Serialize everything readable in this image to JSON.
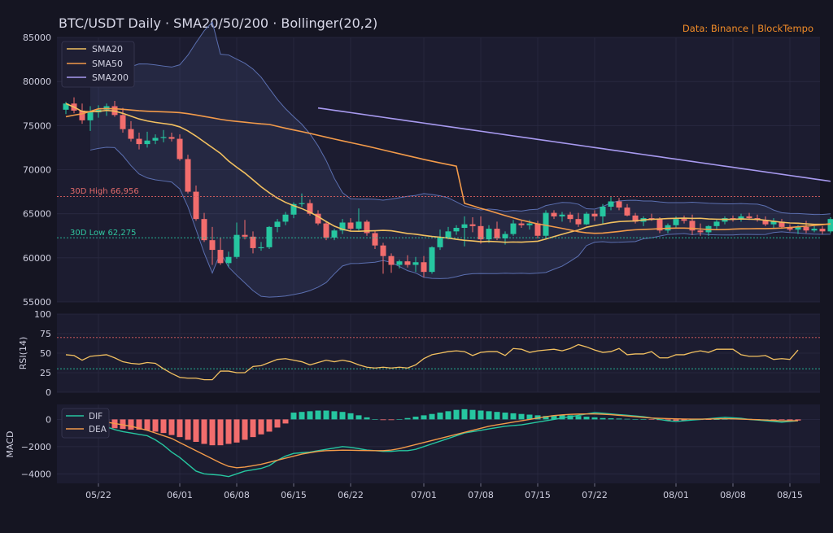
{
  "chart_data": {
    "type": "candlestick",
    "title": "BTC/USDT Daily  ·  SMA20/50/200  ·  Bollinger(20,2)",
    "source": "Data: Binance  |  BlockTempo",
    "colors": {
      "background": "#151522",
      "panel": "#1c1c30",
      "up": "#26c6a0",
      "down": "#f26d6d",
      "sma20": "#f2c060",
      "sma50": "#f29a4a",
      "sma200": "#a89af0",
      "bollinger": "#5b6fb0",
      "dif": "#26c6a0",
      "dea": "#f29a4a",
      "high_line": "#e06060",
      "low_line": "#26c6a0",
      "text": "#cfcfe0",
      "accent": "#f28c28"
    },
    "price_axis": {
      "ylim": [
        55000,
        85000
      ],
      "ticks": [
        55000,
        60000,
        65000,
        70000,
        75000,
        80000,
        85000
      ]
    },
    "x_ticks": [
      "05/22",
      "06/01",
      "06/08",
      "06/15",
      "06/22",
      "07/01",
      "07/08",
      "07/15",
      "07/22",
      "08/01",
      "08/08",
      "08/15"
    ],
    "x_tick_index": [
      4,
      14,
      21,
      28,
      35,
      44,
      51,
      58,
      65,
      75,
      82,
      89
    ],
    "legend": [
      "SMA20",
      "SMA50",
      "SMA200"
    ],
    "annotations": {
      "high": {
        "label": "30D High 66,956",
        "value": 66956
      },
      "low": {
        "label": "30D Low 62,275",
        "value": 62275
      }
    },
    "candles_ohlc": [
      [
        76800,
        77700,
        76300,
        77500
      ],
      [
        77500,
        78200,
        76400,
        76700
      ],
      [
        76700,
        77500,
        75200,
        75600
      ],
      [
        75600,
        77200,
        74400,
        76500
      ],
      [
        76500,
        77300,
        75900,
        76800
      ],
      [
        76800,
        77500,
        76100,
        77200
      ],
      [
        77200,
        77800,
        76000,
        76200
      ],
      [
        76200,
        77000,
        74200,
        74600
      ],
      [
        74600,
        75500,
        73200,
        73500
      ],
      [
        73500,
        74200,
        72300,
        72900
      ],
      [
        72900,
        74300,
        72500,
        73300
      ],
      [
        73300,
        74000,
        72900,
        73600
      ],
      [
        73600,
        74500,
        73100,
        73700
      ],
      [
        73700,
        74200,
        73200,
        73500
      ],
      [
        73500,
        74000,
        71000,
        71200
      ],
      [
        71200,
        71700,
        67300,
        67500
      ],
      [
        67500,
        68200,
        64200,
        64400
      ],
      [
        64400,
        65100,
        61800,
        62000
      ],
      [
        62000,
        63500,
        59200,
        60900
      ],
      [
        60900,
        62300,
        59200,
        59400
      ],
      [
        59400,
        60700,
        59000,
        60100
      ],
      [
        60100,
        64000,
        59900,
        62600
      ],
      [
        62600,
        64300,
        62100,
        62400
      ],
      [
        62400,
        63000,
        60500,
        61100
      ],
      [
        61100,
        61800,
        60800,
        61200
      ],
      [
        61200,
        63600,
        61000,
        63500
      ],
      [
        63500,
        64400,
        62900,
        64100
      ],
      [
        64100,
        65200,
        63700,
        64900
      ],
      [
        64900,
        66300,
        64500,
        66100
      ],
      [
        66100,
        67300,
        65800,
        66200
      ],
      [
        66200,
        66600,
        64800,
        65000
      ],
      [
        65000,
        65400,
        63700,
        63900
      ],
      [
        63900,
        64100,
        62000,
        62300
      ],
      [
        62300,
        63300,
        62000,
        63100
      ],
      [
        63100,
        64400,
        62700,
        64000
      ],
      [
        64000,
        64500,
        63100,
        63300
      ],
      [
        63300,
        65600,
        63100,
        64100
      ],
      [
        64100,
        64300,
        62500,
        62800
      ],
      [
        62800,
        63100,
        61000,
        61400
      ],
      [
        61400,
        61700,
        58200,
        60200
      ],
      [
        60200,
        60500,
        58300,
        59200
      ],
      [
        59200,
        59800,
        58800,
        59600
      ],
      [
        59600,
        60300,
        58900,
        59200
      ],
      [
        59200,
        60100,
        58400,
        59500
      ],
      [
        59500,
        60200,
        57800,
        58400
      ],
      [
        58400,
        61300,
        58200,
        61200
      ],
      [
        61200,
        63200,
        60900,
        62300
      ],
      [
        62300,
        63500,
        62100,
        63000
      ],
      [
        63000,
        63700,
        62600,
        63400
      ],
      [
        63400,
        64700,
        61300,
        63800
      ],
      [
        63800,
        64600,
        62900,
        63600
      ],
      [
        63600,
        64700,
        61600,
        62100
      ],
      [
        62100,
        63700,
        61700,
        63300
      ],
      [
        63300,
        64100,
        62000,
        62200
      ],
      [
        62200,
        63000,
        61500,
        62700
      ],
      [
        62700,
        64300,
        62500,
        63900
      ],
      [
        63900,
        64200,
        63400,
        63700
      ],
      [
        63700,
        64300,
        63200,
        63900
      ],
      [
        63900,
        64200,
        62200,
        62500
      ],
      [
        62500,
        65400,
        62300,
        65100
      ],
      [
        65100,
        65400,
        64400,
        64700
      ],
      [
        64700,
        65200,
        64100,
        64900
      ],
      [
        64900,
        65200,
        64000,
        64400
      ],
      [
        64400,
        65100,
        63500,
        63800
      ],
      [
        63800,
        65200,
        63700,
        65000
      ],
      [
        65000,
        65400,
        64200,
        64700
      ],
      [
        64700,
        66100,
        63800,
        65800
      ],
      [
        65800,
        66900,
        65400,
        66400
      ],
      [
        66400,
        66800,
        65400,
        65700
      ],
      [
        65700,
        66100,
        64700,
        64800
      ],
      [
        64800,
        65100,
        63900,
        64100
      ],
      [
        64100,
        64700,
        63600,
        64500
      ],
      [
        64500,
        65000,
        64200,
        64400
      ],
      [
        64400,
        64600,
        62800,
        63100
      ],
      [
        63100,
        63900,
        62800,
        63700
      ],
      [
        63700,
        64700,
        63400,
        64400
      ],
      [
        64400,
        64800,
        63900,
        64200
      ],
      [
        64200,
        64900,
        62600,
        63100
      ],
      [
        63100,
        63900,
        62500,
        62900
      ],
      [
        62900,
        63700,
        62500,
        63600
      ],
      [
        63600,
        64300,
        63200,
        64100
      ],
      [
        64100,
        64700,
        63800,
        64500
      ],
      [
        64500,
        64800,
        64100,
        64400
      ],
      [
        64400,
        65000,
        64100,
        64700
      ],
      [
        64700,
        65100,
        64300,
        64500
      ],
      [
        64500,
        64900,
        64100,
        64300
      ],
      [
        64300,
        64700,
        63600,
        63800
      ],
      [
        63800,
        64500,
        63400,
        64100
      ],
      [
        64100,
        64400,
        63300,
        63500
      ],
      [
        63500,
        63800,
        63000,
        63200
      ],
      [
        63200,
        63700,
        62700,
        63500
      ],
      [
        63500,
        64200,
        62800,
        63100
      ],
      [
        63100,
        63600,
        62900,
        63300
      ],
      [
        63300,
        63600,
        62700,
        63000
      ],
      [
        63000,
        64600,
        62800,
        64400
      ]
    ],
    "rsi": {
      "label": "RSI(14)",
      "ylim": [
        0,
        100
      ],
      "ticks": [
        0,
        25,
        50,
        75,
        100
      ],
      "levels": [
        70,
        30
      ],
      "values": [
        48,
        47,
        41,
        46,
        47,
        48,
        44,
        39,
        37,
        36,
        38,
        37,
        30,
        24,
        19,
        18,
        18,
        16,
        16,
        27,
        27,
        25,
        25,
        33,
        34,
        38,
        42,
        43,
        41,
        39,
        35,
        38,
        41,
        39,
        41,
        39,
        35,
        32,
        31,
        32,
        31,
        32,
        31,
        35,
        43,
        48,
        50,
        52,
        53,
        52,
        47,
        51,
        52,
        52,
        47,
        56,
        55,
        51,
        53,
        54,
        55,
        53,
        56,
        61,
        58,
        54,
        51,
        52,
        56,
        48,
        49,
        49,
        52,
        44,
        44,
        48,
        48,
        51,
        53,
        51,
        55,
        55,
        55,
        48,
        46,
        46,
        47,
        42,
        43,
        42,
        54
      ]
    },
    "macd": {
      "label": "MACD",
      "legend": [
        "DIF",
        "DEA"
      ],
      "ylim": [
        -4700,
        1100
      ],
      "ticks": [
        -4000,
        -2000,
        0
      ],
      "dif": [
        -200,
        -300,
        -350,
        -300,
        -400,
        -550,
        -750,
        -900,
        -1000,
        -1100,
        -1200,
        -1500,
        -1900,
        -2400,
        -2800,
        -3300,
        -3800,
        -4000,
        -4050,
        -4100,
        -4200,
        -4000,
        -3800,
        -3700,
        -3600,
        -3400,
        -3000,
        -2700,
        -2500,
        -2450,
        -2400,
        -2300,
        -2200,
        -2100,
        -2000,
        -2050,
        -2150,
        -2250,
        -2300,
        -2350,
        -2350,
        -2300,
        -2300,
        -2200,
        -2000,
        -1800,
        -1600,
        -1400,
        -1200,
        -1000,
        -900,
        -800,
        -700,
        -600,
        -500,
        -450,
        -400,
        -300,
        -200,
        -100,
        0,
        100,
        200,
        300,
        400,
        500,
        450,
        400,
        350,
        300,
        250,
        200,
        100,
        0,
        -100,
        -150,
        -100,
        -50,
        0,
        50,
        100,
        150,
        120,
        80,
        0,
        -50,
        -100,
        -150,
        -200,
        -150,
        -100
      ],
      "dea": [
        300,
        200,
        100,
        0,
        -100,
        -200,
        -300,
        -400,
        -500,
        -650,
        -800,
        -1000,
        -1200,
        -1400,
        -1700,
        -2000,
        -2300,
        -2600,
        -2900,
        -3200,
        -3450,
        -3550,
        -3500,
        -3400,
        -3300,
        -3150,
        -3000,
        -2850,
        -2700,
        -2550,
        -2450,
        -2350,
        -2300,
        -2280,
        -2260,
        -2270,
        -2280,
        -2290,
        -2300,
        -2300,
        -2250,
        -2150,
        -2000,
        -1850,
        -1700,
        -1550,
        -1400,
        -1250,
        -1100,
        -950,
        -800,
        -650,
        -500,
        -400,
        -300,
        -200,
        -100,
        0,
        100,
        200,
        280,
        330,
        370,
        390,
        400,
        400,
        380,
        350,
        300,
        250,
        200,
        150,
        100,
        80,
        60,
        40,
        30,
        20,
        20,
        30,
        40,
        50,
        40,
        20,
        0,
        -20,
        -50,
        -80,
        -100,
        -100,
        -90
      ],
      "hist": [
        -300,
        -400,
        -500,
        -600,
        -700,
        -700,
        -650,
        -700,
        -750,
        -750,
        -800,
        -900,
        -1000,
        -1150,
        -1300,
        -1500,
        -1650,
        -1800,
        -1900,
        -1900,
        -1800,
        -1700,
        -1500,
        -1300,
        -1100,
        -900,
        -600,
        -300,
        500,
        550,
        600,
        650,
        650,
        600,
        550,
        450,
        300,
        150,
        0,
        -50,
        -50,
        0,
        100,
        200,
        300,
        400,
        500,
        600,
        700,
        750,
        700,
        650,
        600,
        550,
        500,
        450,
        400,
        350,
        300,
        250,
        300,
        350,
        300,
        250,
        200,
        150,
        100,
        80,
        60,
        40,
        20,
        0,
        -30,
        -50,
        -80,
        -100,
        -80,
        -60,
        -40,
        -20,
        0,
        20,
        40,
        50,
        40,
        20,
        0,
        -20,
        -40,
        -60,
        -80
      ]
    }
  }
}
